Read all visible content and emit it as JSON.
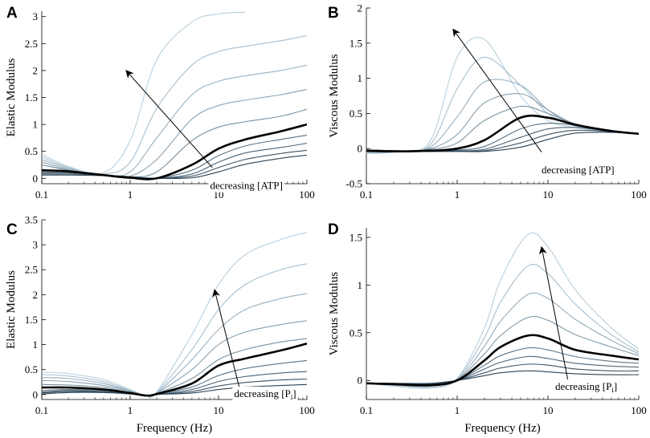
{
  "chart_data": [
    {
      "panel": "A",
      "type": "line",
      "xscale": "log",
      "xlim": [
        0.1,
        100
      ],
      "ylim": [
        -0.1,
        3.1
      ],
      "xticks": [
        "0.1",
        "1",
        "10",
        "100"
      ],
      "yticks": [
        "0",
        "0.5",
        "1",
        "1.5",
        "2",
        "2.5",
        "3"
      ],
      "ytick_values": [
        0,
        0.5,
        1,
        1.5,
        2,
        2.5,
        3
      ],
      "xlabel": "",
      "ylabel": "Elastic Modulus",
      "annotation": "decreasing [ATP]",
      "x": [
        0.1,
        0.2,
        0.5,
        1,
        2,
        5,
        10,
        20,
        50,
        100
      ],
      "series": [
        {
          "name": "c1",
          "values": [
            0.45,
            0.22,
            0.1,
            0.7,
            2.2,
            2.9,
            3.05,
            3.08,
            null,
            null
          ]
        },
        {
          "name": "c2",
          "values": [
            0.4,
            0.2,
            0.08,
            0.3,
            1.3,
            2.1,
            2.35,
            2.45,
            2.55,
            2.65
          ]
        },
        {
          "name": "c3",
          "values": [
            0.35,
            0.18,
            0.06,
            0.12,
            0.75,
            1.55,
            1.8,
            1.9,
            2.0,
            2.1
          ]
        },
        {
          "name": "c4",
          "values": [
            0.3,
            0.16,
            0.05,
            0.04,
            0.35,
            1.1,
            1.35,
            1.45,
            1.55,
            1.65
          ]
        },
        {
          "name": "c5",
          "values": [
            0.25,
            0.15,
            0.05,
            0.02,
            0.12,
            0.7,
            0.95,
            1.05,
            1.15,
            1.28
          ]
        },
        {
          "name": "c6",
          "values": [
            0.15,
            0.13,
            0.06,
            0.01,
            0.0,
            0.25,
            0.55,
            0.72,
            0.87,
            1.0
          ],
          "bold": true
        },
        {
          "name": "c7",
          "values": [
            0.12,
            0.11,
            0.06,
            0.02,
            0.0,
            0.15,
            0.42,
            0.6,
            0.72,
            0.8
          ]
        },
        {
          "name": "c8",
          "values": [
            0.1,
            0.1,
            0.06,
            0.03,
            0.0,
            0.08,
            0.3,
            0.47,
            0.57,
            0.65
          ]
        },
        {
          "name": "c9",
          "values": [
            0.08,
            0.08,
            0.06,
            0.03,
            0.0,
            0.04,
            0.2,
            0.35,
            0.46,
            0.52
          ]
        },
        {
          "name": "c10",
          "values": [
            0.06,
            0.06,
            0.05,
            0.03,
            0.0,
            0.01,
            0.12,
            0.26,
            0.37,
            0.43
          ]
        }
      ],
      "arrow_from": [
        8.5,
        0.2
      ],
      "arrow_to": [
        0.9,
        2.0
      ],
      "annot_at": [
        8.0,
        -0.2
      ]
    },
    {
      "panel": "B",
      "type": "line",
      "xscale": "log",
      "xlim": [
        0.1,
        100
      ],
      "ylim": [
        -0.5,
        2.0
      ],
      "xticks": [
        "0.1",
        "1",
        "10",
        "100"
      ],
      "yticks": [
        "-0.5",
        "0",
        "0.5",
        "1",
        "1.5",
        "2"
      ],
      "ytick_values": [
        -0.5,
        0,
        0.5,
        1,
        1.5,
        2
      ],
      "xlabel": "",
      "ylabel": "Viscous Modulus",
      "annotation": "decreasing [ATP]",
      "x": [
        0.1,
        0.2,
        0.5,
        1,
        2,
        5,
        10,
        20,
        50,
        100
      ],
      "series": [
        {
          "name": "c1",
          "values": [
            -0.07,
            -0.05,
            0.1,
            1.3,
            1.55,
            0.75,
            0.4,
            0.3,
            0.24,
            0.21
          ]
        },
        {
          "name": "c2",
          "values": [
            -0.06,
            -0.05,
            0.05,
            0.85,
            1.3,
            0.9,
            0.5,
            0.32,
            0.24,
            0.21
          ]
        },
        {
          "name": "c3",
          "values": [
            -0.05,
            -0.04,
            0.02,
            0.45,
            0.95,
            0.9,
            0.55,
            0.34,
            0.25,
            0.21
          ]
        },
        {
          "name": "c4",
          "values": [
            -0.05,
            -0.04,
            0.0,
            0.2,
            0.65,
            0.78,
            0.55,
            0.35,
            0.25,
            0.21
          ]
        },
        {
          "name": "c5",
          "values": [
            -0.04,
            -0.04,
            -0.01,
            0.08,
            0.4,
            0.6,
            0.5,
            0.35,
            0.25,
            0.21
          ]
        },
        {
          "name": "c6",
          "values": [
            -0.03,
            -0.04,
            -0.03,
            0.0,
            0.12,
            0.44,
            0.44,
            0.34,
            0.25,
            0.21
          ],
          "bold": true
        },
        {
          "name": "c7",
          "values": [
            -0.03,
            -0.04,
            -0.04,
            -0.02,
            0.03,
            0.28,
            0.36,
            0.33,
            0.25,
            0.21
          ]
        },
        {
          "name": "c8",
          "values": [
            -0.02,
            -0.03,
            -0.04,
            -0.03,
            -0.01,
            0.16,
            0.28,
            0.3,
            0.25,
            0.21
          ]
        },
        {
          "name": "c9",
          "values": [
            -0.02,
            -0.03,
            -0.04,
            -0.04,
            -0.03,
            0.08,
            0.2,
            0.26,
            0.24,
            0.21
          ]
        },
        {
          "name": "c10",
          "values": [
            -0.02,
            -0.03,
            -0.04,
            -0.04,
            -0.04,
            0.02,
            0.13,
            0.22,
            0.23,
            0.21
          ]
        }
      ],
      "arrow_from": [
        8.5,
        -0.05
      ],
      "arrow_to": [
        0.9,
        1.7
      ],
      "annot_at": [
        8.5,
        -0.35
      ]
    },
    {
      "panel": "C",
      "type": "line",
      "xscale": "log",
      "xlim": [
        0.1,
        100
      ],
      "ylim": [
        -0.1,
        3.5
      ],
      "xticks": [
        "0.1",
        "1",
        "10",
        "100"
      ],
      "yticks": [
        "0",
        "0.5",
        "1",
        "1.5",
        "2",
        "2.5",
        "3",
        "3.5"
      ],
      "ytick_values": [
        0,
        0.5,
        1,
        1.5,
        2,
        2.5,
        3,
        3.5
      ],
      "xlabel": "Frequency (Hz)",
      "ylabel": "Elastic Modulus",
      "annotation": "decreasing [P",
      "annotation_sub": "i",
      "annotation_end": "]",
      "x": [
        0.1,
        0.2,
        0.5,
        1,
        1.5,
        2,
        5,
        10,
        20,
        50,
        100
      ],
      "series": [
        {
          "name": "c1",
          "values": [
            0.45,
            0.42,
            0.3,
            0.1,
            -0.02,
            0.05,
            1.2,
            2.2,
            2.8,
            3.1,
            3.25
          ]
        },
        {
          "name": "c2",
          "values": [
            0.4,
            0.37,
            0.26,
            0.08,
            -0.02,
            0.04,
            0.9,
            1.7,
            2.2,
            2.5,
            2.62
          ]
        },
        {
          "name": "c3",
          "values": [
            0.34,
            0.32,
            0.22,
            0.07,
            -0.02,
            0.03,
            0.7,
            1.3,
            1.7,
            1.92,
            2.02
          ]
        },
        {
          "name": "c4",
          "values": [
            0.28,
            0.26,
            0.18,
            0.06,
            -0.02,
            0.03,
            0.5,
            1.0,
            1.25,
            1.4,
            1.48
          ]
        },
        {
          "name": "c5",
          "values": [
            0.2,
            0.19,
            0.14,
            0.04,
            -0.02,
            0.02,
            0.32,
            0.7,
            0.9,
            1.05,
            1.12
          ]
        },
        {
          "name": "c6",
          "values": [
            0.14,
            0.14,
            0.1,
            0.03,
            -0.02,
            0.01,
            0.22,
            0.58,
            0.72,
            0.88,
            1.02
          ],
          "bold": true
        },
        {
          "name": "c7",
          "values": [
            0.08,
            0.1,
            0.08,
            0.03,
            -0.02,
            0.01,
            0.15,
            0.38,
            0.52,
            0.62,
            0.68
          ]
        },
        {
          "name": "c8",
          "values": [
            0.05,
            0.08,
            0.06,
            0.02,
            -0.02,
            0.0,
            0.1,
            0.26,
            0.36,
            0.43,
            0.46
          ]
        },
        {
          "name": "c9",
          "values": [
            0.03,
            0.06,
            0.05,
            0.02,
            -0.02,
            0.0,
            0.06,
            0.17,
            0.24,
            0.29,
            0.31
          ]
        },
        {
          "name": "c10",
          "values": [
            0.01,
            0.04,
            0.04,
            0.01,
            -0.02,
            0.0,
            0.03,
            0.1,
            0.15,
            0.18,
            0.2
          ]
        }
      ],
      "arrow_from": [
        18,
        0.0
      ],
      "arrow_to": [
        9,
        2.1
      ],
      "annot_at": [
        15,
        -0.05
      ]
    },
    {
      "panel": "D",
      "type": "line",
      "xscale": "log",
      "xlim": [
        0.1,
        100
      ],
      "ylim": [
        -0.2,
        1.6
      ],
      "xticks": [
        "0.1",
        "1",
        "10",
        "100"
      ],
      "yticks": [
        "0",
        "0.5",
        "1",
        "1.5"
      ],
      "ytick_values": [
        0,
        0.5,
        1,
        1.5
      ],
      "xlabel": "Frequency (Hz)",
      "ylabel": "Viscous Modulus",
      "annotation": "decreasing [P",
      "annotation_sub": "i",
      "annotation_end": "]",
      "x": [
        0.1,
        0.2,
        0.5,
        1,
        2,
        3,
        6,
        10,
        20,
        50,
        100
      ],
      "series": [
        {
          "name": "c1",
          "values": [
            -0.03,
            -0.06,
            -0.08,
            0.02,
            0.55,
            1.05,
            1.53,
            1.4,
            0.95,
            0.55,
            0.33
          ]
        },
        {
          "name": "c2",
          "values": [
            -0.03,
            -0.05,
            -0.07,
            0.02,
            0.45,
            0.82,
            1.2,
            1.12,
            0.8,
            0.48,
            0.3
          ]
        },
        {
          "name": "c3",
          "values": [
            -0.03,
            -0.05,
            -0.06,
            0.01,
            0.36,
            0.62,
            0.9,
            0.86,
            0.64,
            0.42,
            0.28
          ]
        },
        {
          "name": "c4",
          "values": [
            -0.03,
            -0.04,
            -0.06,
            0.01,
            0.28,
            0.47,
            0.66,
            0.63,
            0.48,
            0.35,
            0.26
          ]
        },
        {
          "name": "c5",
          "values": [
            -0.03,
            -0.04,
            -0.05,
            0.0,
            0.21,
            0.35,
            0.47,
            0.44,
            0.32,
            0.26,
            0.22
          ],
          "bold": true
        },
        {
          "name": "c6",
          "values": [
            -0.03,
            -0.04,
            -0.05,
            0.0,
            0.16,
            0.26,
            0.34,
            0.32,
            0.25,
            0.2,
            0.18
          ]
        },
        {
          "name": "c7",
          "values": [
            -0.03,
            -0.04,
            -0.04,
            0.0,
            0.12,
            0.19,
            0.25,
            0.23,
            0.18,
            0.15,
            0.14
          ]
        },
        {
          "name": "c8",
          "values": [
            -0.03,
            -0.03,
            -0.04,
            0.0,
            0.08,
            0.13,
            0.17,
            0.16,
            0.12,
            0.1,
            0.1
          ]
        },
        {
          "name": "c9",
          "values": [
            -0.03,
            -0.03,
            -0.03,
            0.0,
            0.05,
            0.08,
            0.1,
            0.09,
            0.07,
            0.06,
            0.06
          ]
        }
      ],
      "arrow_from": [
        17,
        -0.05
      ],
      "arrow_to": [
        8.5,
        1.4
      ],
      "annot_at": [
        12,
        -0.1
      ]
    }
  ],
  "colors": {
    "bold": "#000000",
    "light": "#b6cfdd",
    "dark": "#2c4356",
    "axis": "#000000"
  }
}
